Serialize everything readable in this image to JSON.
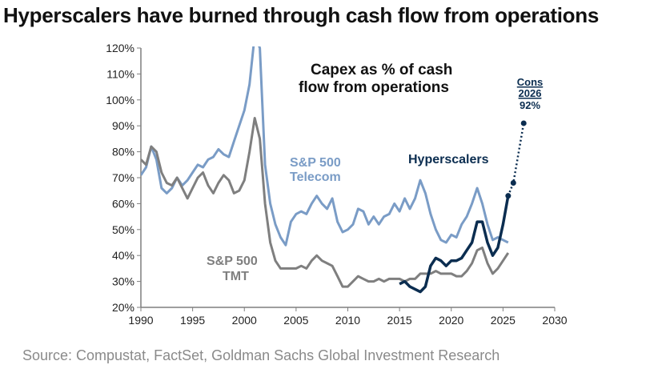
{
  "header": {
    "title": "Hyperscalers have burned through cash flow from operations"
  },
  "footer": {
    "source": "Source: Compustat, FactSet, Goldman Sachs Global Investment Research"
  },
  "chart_data": {
    "type": "line",
    "title": "Capex as % of cash flow from operations",
    "title_lines": [
      "Capex as % of cash",
      "flow from operations"
    ],
    "xlim": [
      1990,
      2030
    ],
    "ylim": [
      20,
      120
    ],
    "x_ticks": [
      1990,
      1995,
      2000,
      2005,
      2010,
      2015,
      2020,
      2025,
      2030
    ],
    "y_ticks": [
      20,
      30,
      40,
      50,
      60,
      70,
      80,
      90,
      100,
      110,
      120
    ],
    "y_tick_labels": [
      "20%",
      "30%",
      "40%",
      "50%",
      "60%",
      "70%",
      "80%",
      "90%",
      "100%",
      "110%",
      "120%"
    ],
    "grid": false,
    "series": [
      {
        "name": "S&P 500 Telecom",
        "label_lines": [
          "S&P 500",
          "Telecom"
        ],
        "color": "#7a9cc6",
        "points": [
          [
            1990,
            71
          ],
          [
            1990.5,
            74
          ],
          [
            1991,
            82
          ],
          [
            1991.5,
            77
          ],
          [
            1992,
            66
          ],
          [
            1992.5,
            64
          ],
          [
            1993,
            66
          ],
          [
            1993.5,
            70
          ],
          [
            1994,
            67
          ],
          [
            1994.5,
            69
          ],
          [
            1995,
            72
          ],
          [
            1995.5,
            75
          ],
          [
            1996,
            74
          ],
          [
            1996.5,
            77
          ],
          [
            1997,
            78
          ],
          [
            1997.5,
            81
          ],
          [
            1998,
            79
          ],
          [
            1998.5,
            78
          ],
          [
            1999,
            84
          ],
          [
            1999.5,
            90
          ],
          [
            2000,
            96
          ],
          [
            2000.5,
            106
          ],
          [
            2001,
            125
          ],
          [
            2001.5,
            120
          ],
          [
            2002,
            75
          ],
          [
            2002.5,
            60
          ],
          [
            2003,
            52
          ],
          [
            2003.5,
            47
          ],
          [
            2004,
            44
          ],
          [
            2004.5,
            53
          ],
          [
            2005,
            56
          ],
          [
            2005.5,
            57
          ],
          [
            2006,
            56
          ],
          [
            2006.5,
            60
          ],
          [
            2007,
            63
          ],
          [
            2007.5,
            60
          ],
          [
            2008,
            58
          ],
          [
            2008.5,
            62
          ],
          [
            2009,
            53
          ],
          [
            2009.5,
            49
          ],
          [
            2010,
            50
          ],
          [
            2010.5,
            52
          ],
          [
            2011,
            58
          ],
          [
            2011.5,
            57
          ],
          [
            2012,
            52
          ],
          [
            2012.5,
            55
          ],
          [
            2013,
            52
          ],
          [
            2013.5,
            55
          ],
          [
            2014,
            56
          ],
          [
            2014.5,
            60
          ],
          [
            2015,
            57
          ],
          [
            2015.5,
            62
          ],
          [
            2016,
            58
          ],
          [
            2016.5,
            62
          ],
          [
            2017,
            69
          ],
          [
            2017.5,
            64
          ],
          [
            2018,
            56
          ],
          [
            2018.5,
            50
          ],
          [
            2019,
            46
          ],
          [
            2019.5,
            45
          ],
          [
            2020,
            48
          ],
          [
            2020.5,
            47
          ],
          [
            2021,
            52
          ],
          [
            2021.5,
            55
          ],
          [
            2022,
            60
          ],
          [
            2022.5,
            66
          ],
          [
            2023,
            60
          ],
          [
            2023.5,
            52
          ],
          [
            2024,
            46
          ],
          [
            2024.5,
            47
          ],
          [
            2025,
            46
          ],
          [
            2025.5,
            45
          ]
        ]
      },
      {
        "name": "S&P 500 TMT",
        "label_lines": [
          "S&P 500",
          "TMT"
        ],
        "color": "#7f7f7f",
        "points": [
          [
            1990,
            77
          ],
          [
            1990.5,
            75
          ],
          [
            1991,
            82
          ],
          [
            1991.5,
            80
          ],
          [
            1992,
            72
          ],
          [
            1992.5,
            68
          ],
          [
            1993,
            67
          ],
          [
            1993.5,
            70
          ],
          [
            1994,
            66
          ],
          [
            1994.5,
            62
          ],
          [
            1995,
            66
          ],
          [
            1995.5,
            70
          ],
          [
            1996,
            72
          ],
          [
            1996.5,
            67
          ],
          [
            1997,
            64
          ],
          [
            1997.5,
            68
          ],
          [
            1998,
            71
          ],
          [
            1998.5,
            69
          ],
          [
            1999,
            64
          ],
          [
            1999.5,
            65
          ],
          [
            2000,
            69
          ],
          [
            2000.5,
            80
          ],
          [
            2001,
            93
          ],
          [
            2001.5,
            85
          ],
          [
            2002,
            60
          ],
          [
            2002.5,
            45
          ],
          [
            2003,
            38
          ],
          [
            2003.5,
            35
          ],
          [
            2004,
            35
          ],
          [
            2004.5,
            35
          ],
          [
            2005,
            35
          ],
          [
            2005.5,
            36
          ],
          [
            2006,
            35
          ],
          [
            2006.5,
            38
          ],
          [
            2007,
            40
          ],
          [
            2007.5,
            38
          ],
          [
            2008,
            37
          ],
          [
            2008.5,
            36
          ],
          [
            2009,
            32
          ],
          [
            2009.5,
            28
          ],
          [
            2010,
            28
          ],
          [
            2010.5,
            30
          ],
          [
            2011,
            32
          ],
          [
            2011.5,
            31
          ],
          [
            2012,
            30
          ],
          [
            2012.5,
            30
          ],
          [
            2013,
            31
          ],
          [
            2013.5,
            30
          ],
          [
            2014,
            31
          ],
          [
            2014.5,
            31
          ],
          [
            2015,
            31
          ],
          [
            2015.5,
            30
          ],
          [
            2016,
            31
          ],
          [
            2016.5,
            31
          ],
          [
            2017,
            33
          ],
          [
            2017.5,
            33
          ],
          [
            2018,
            33
          ],
          [
            2018.5,
            34
          ],
          [
            2019,
            33
          ],
          [
            2019.5,
            33
          ],
          [
            2020,
            33
          ],
          [
            2020.5,
            32
          ],
          [
            2021,
            32
          ],
          [
            2021.5,
            34
          ],
          [
            2022,
            37
          ],
          [
            2022.5,
            42
          ],
          [
            2023,
            43
          ],
          [
            2023.5,
            37
          ],
          [
            2024,
            33
          ],
          [
            2024.5,
            35
          ],
          [
            2025,
            38
          ],
          [
            2025.5,
            41
          ]
        ]
      },
      {
        "name": "Hyperscalers",
        "label_lines": [
          "Hyperscalers"
        ],
        "color": "#0b2d50",
        "points": [
          [
            2015,
            29
          ],
          [
            2015.5,
            30
          ],
          [
            2016,
            28
          ],
          [
            2016.5,
            27
          ],
          [
            2017,
            26
          ],
          [
            2017.5,
            28
          ],
          [
            2018,
            36
          ],
          [
            2018.5,
            39
          ],
          [
            2019,
            38
          ],
          [
            2019.5,
            36
          ],
          [
            2020,
            38
          ],
          [
            2020.5,
            38
          ],
          [
            2021,
            39
          ],
          [
            2021.5,
            42
          ],
          [
            2022,
            45
          ],
          [
            2022.5,
            53
          ],
          [
            2023,
            53
          ],
          [
            2023.5,
            45
          ],
          [
            2024,
            40
          ],
          [
            2024.5,
            43
          ],
          [
            2025,
            52
          ],
          [
            2025.5,
            63
          ]
        ],
        "projection": [
          [
            2025.5,
            63
          ],
          [
            2026,
            68
          ],
          [
            2027,
            91
          ]
        ],
        "markers": [
          [
            2025.5,
            63
          ],
          [
            2026,
            68
          ],
          [
            2027,
            91
          ]
        ]
      }
    ],
    "annotation": {
      "lines": [
        "Cons",
        "2026",
        "92%"
      ],
      "underlined": [
        "Cons",
        "2026"
      ],
      "color": "#0b2d50"
    }
  }
}
